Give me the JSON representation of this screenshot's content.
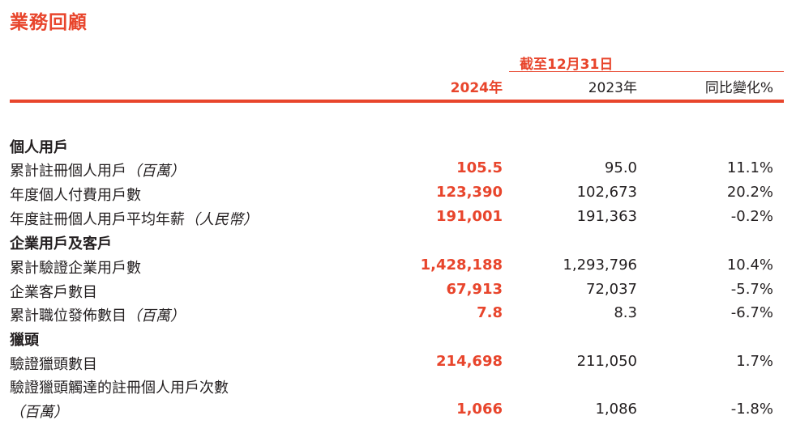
{
  "title": "業務回顧",
  "header": {
    "period": "截至12月31日",
    "col_2024": "2024年",
    "col_2023": "2023年",
    "col_yoy": "同比變化%"
  },
  "sections": [
    {
      "name": "個人用戶",
      "rows": [
        {
          "label": "累計註冊個人用戶",
          "unit": "（百萬）",
          "v2024": "105.5",
          "v2023": "95.0",
          "yoy": "11.1%"
        },
        {
          "label": "年度個人付費用戶數",
          "unit": "",
          "v2024": "123,390",
          "v2023": "102,673",
          "yoy": "20.2%"
        },
        {
          "label": "年度註冊個人用戶平均年薪",
          "unit": "（人民幣）",
          "v2024": "191,001",
          "v2023": "191,363",
          "yoy": "-0.2%"
        }
      ]
    },
    {
      "name": "企業用戶及客戶",
      "rows": [
        {
          "label": "累計驗證企業用戶數",
          "unit": "",
          "v2024": "1,428,188",
          "v2023": "1,293,796",
          "yoy": "10.4%"
        },
        {
          "label": "企業客戶數目",
          "unit": "",
          "v2024": "67,913",
          "v2023": "72,037",
          "yoy": "-5.7%"
        },
        {
          "label": "累計職位發佈數目",
          "unit": "（百萬）",
          "v2024": "7.8",
          "v2023": "8.3",
          "yoy": "-6.7%"
        }
      ]
    },
    {
      "name": "獵頭",
      "rows": [
        {
          "label": "驗證獵頭數目",
          "unit": "",
          "v2024": "214,698",
          "v2023": "211,050",
          "yoy": "1.7%"
        },
        {
          "label": "驗證獵頭觸達的註冊個人用戶次數",
          "unit": "",
          "v2024": "",
          "v2023": "",
          "yoy": ""
        },
        {
          "label": "",
          "unit": "（百萬）",
          "v2024": "1,066",
          "v2023": "1,086",
          "yoy": "-1.8%"
        }
      ]
    }
  ]
}
